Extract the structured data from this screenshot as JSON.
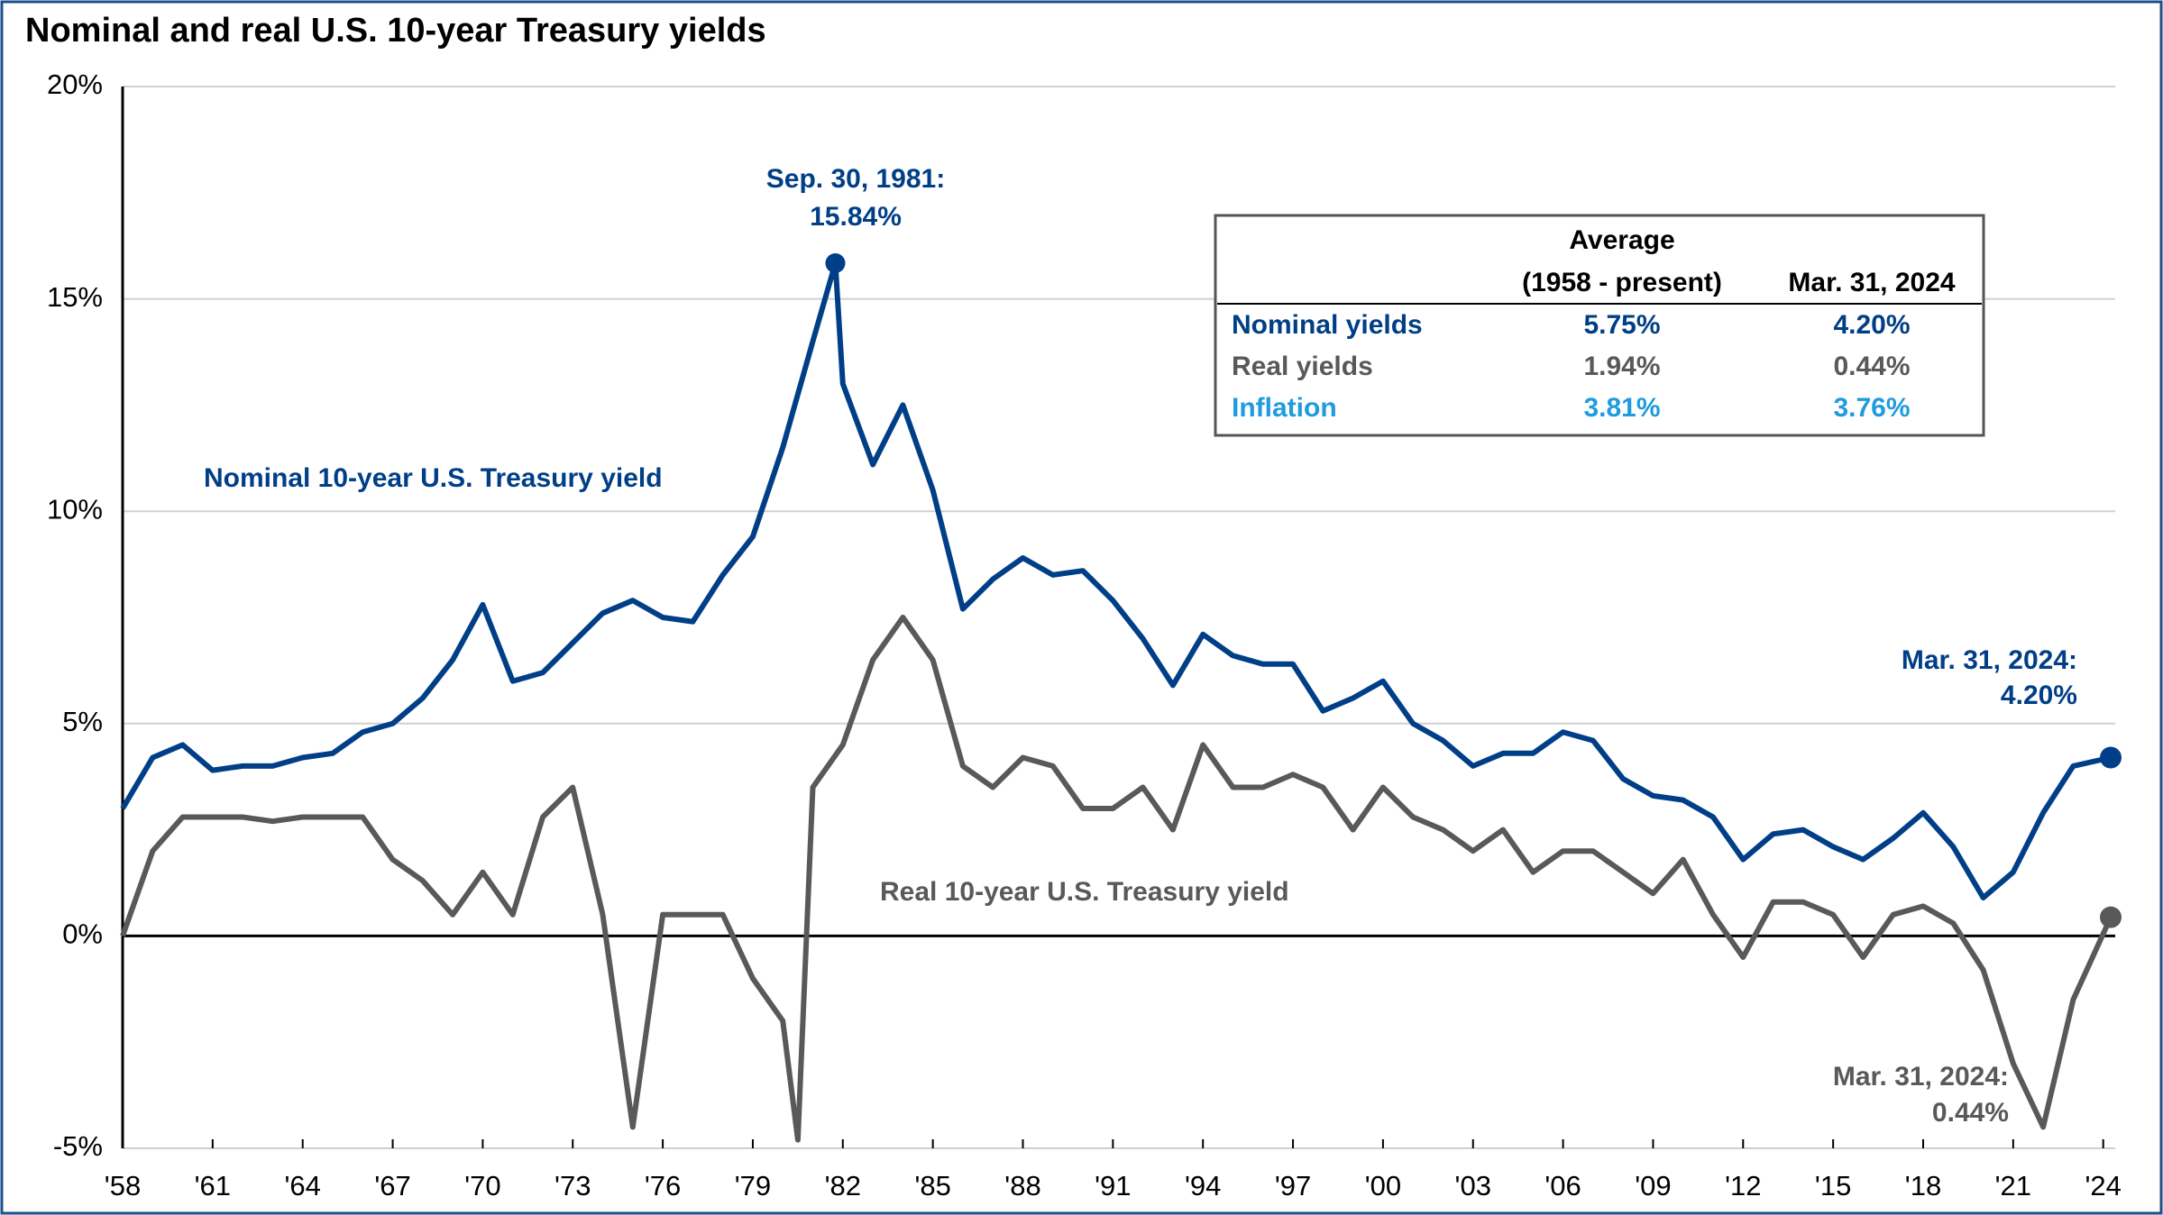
{
  "chart_data": {
    "type": "line",
    "title": "Nominal and real U.S. 10-year Treasury yields",
    "xlim": [
      1958,
      2024.4
    ],
    "xticks": [
      {
        "value": 1958,
        "label": "'58"
      },
      {
        "value": 1961,
        "label": "'61"
      },
      {
        "value": 1964,
        "label": "'64"
      },
      {
        "value": 1967,
        "label": "'67"
      },
      {
        "value": 1970,
        "label": "'70"
      },
      {
        "value": 1973,
        "label": "'73"
      },
      {
        "value": 1976,
        "label": "'76"
      },
      {
        "value": 1979,
        "label": "'79"
      },
      {
        "value": 1982,
        "label": "'82"
      },
      {
        "value": 1985,
        "label": "'85"
      },
      {
        "value": 1988,
        "label": "'88"
      },
      {
        "value": 1991,
        "label": "'91"
      },
      {
        "value": 1994,
        "label": "'94"
      },
      {
        "value": 1997,
        "label": "'97"
      },
      {
        "value": 2000,
        "label": "'00"
      },
      {
        "value": 2003,
        "label": "'03"
      },
      {
        "value": 2006,
        "label": "'06"
      },
      {
        "value": 2009,
        "label": "'09"
      },
      {
        "value": 2012,
        "label": "'12"
      },
      {
        "value": 2015,
        "label": "'15"
      },
      {
        "value": 2018,
        "label": "'18"
      },
      {
        "value": 2021,
        "label": "'21"
      },
      {
        "value": 2024,
        "label": "'24"
      }
    ],
    "ylim": [
      -5,
      20
    ],
    "yticks": [
      {
        "value": -5,
        "label": "-5%"
      },
      {
        "value": 0,
        "label": "0%"
      },
      {
        "value": 5,
        "label": "5%"
      },
      {
        "value": 10,
        "label": "10%"
      },
      {
        "value": 15,
        "label": "15%"
      },
      {
        "value": 20,
        "label": "20%"
      }
    ],
    "grid": true,
    "series": [
      {
        "name": "Nominal 10-year U.S. Treasury yield",
        "color": "#003f87",
        "x": [
          1958,
          1959,
          1960,
          1961,
          1962,
          1963,
          1964,
          1965,
          1966,
          1967,
          1968,
          1969,
          1970,
          1971,
          1972,
          1973,
          1974,
          1975,
          1976,
          1977,
          1978,
          1979,
          1980,
          1981,
          1981.75,
          1982,
          1983,
          1984,
          1985,
          1986,
          1987,
          1988,
          1989,
          1990,
          1991,
          1992,
          1993,
          1994,
          1995,
          1996,
          1997,
          1998,
          1999,
          2000,
          2001,
          2002,
          2003,
          2004,
          2005,
          2006,
          2007,
          2008,
          2009,
          2010,
          2011,
          2012,
          2013,
          2014,
          2015,
          2016,
          2017,
          2018,
          2019,
          2020,
          2021,
          2022,
          2023,
          2024.25
        ],
        "values": [
          3.0,
          4.2,
          4.5,
          3.9,
          4.0,
          4.0,
          4.2,
          4.3,
          4.8,
          5.0,
          5.6,
          6.5,
          7.8,
          6.0,
          6.2,
          6.9,
          7.6,
          7.9,
          7.5,
          7.4,
          8.5,
          9.4,
          11.5,
          14.0,
          15.84,
          13.0,
          11.1,
          12.5,
          10.5,
          7.7,
          8.4,
          8.9,
          8.5,
          8.6,
          7.9,
          7.0,
          5.9,
          7.1,
          6.6,
          6.4,
          6.4,
          5.3,
          5.6,
          6.0,
          5.0,
          4.6,
          4.0,
          4.3,
          4.3,
          4.8,
          4.6,
          3.7,
          3.3,
          3.2,
          2.8,
          1.8,
          2.4,
          2.5,
          2.1,
          1.8,
          2.3,
          2.9,
          2.1,
          0.9,
          1.5,
          2.9,
          4.0,
          4.2
        ]
      },
      {
        "name": "Real 10-year U.S. Treasury yield",
        "color": "#595959",
        "x": [
          1958,
          1959,
          1960,
          1961,
          1962,
          1963,
          1964,
          1965,
          1966,
          1967,
          1968,
          1969,
          1970,
          1971,
          1972,
          1973,
          1974,
          1975,
          1976,
          1977,
          1978,
          1979,
          1980,
          1980.5,
          1981,
          1982,
          1983,
          1984,
          1985,
          1986,
          1987,
          1988,
          1989,
          1990,
          1991,
          1992,
          1993,
          1994,
          1995,
          1996,
          1997,
          1998,
          1999,
          2000,
          2001,
          2002,
          2003,
          2004,
          2005,
          2006,
          2007,
          2008,
          2009,
          2010,
          2011,
          2012,
          2013,
          2014,
          2015,
          2016,
          2017,
          2018,
          2019,
          2020,
          2021,
          2022,
          2023,
          2024.25
        ],
        "values": [
          0.0,
          2.0,
          2.8,
          2.8,
          2.8,
          2.7,
          2.8,
          2.8,
          2.8,
          1.8,
          1.3,
          0.5,
          1.5,
          0.5,
          2.8,
          3.5,
          0.5,
          -4.5,
          0.5,
          0.5,
          0.5,
          -1.0,
          -2.0,
          -4.8,
          3.5,
          4.5,
          6.5,
          7.5,
          6.5,
          4.0,
          3.5,
          4.2,
          4.0,
          3.0,
          3.0,
          3.5,
          2.5,
          4.5,
          3.5,
          3.5,
          3.8,
          3.5,
          2.5,
          3.5,
          2.8,
          2.5,
          2.0,
          2.5,
          1.5,
          2.0,
          2.0,
          1.5,
          1.0,
          1.8,
          0.5,
          -0.5,
          0.8,
          0.8,
          0.5,
          -0.5,
          0.5,
          0.7,
          0.3,
          -0.8,
          -3.0,
          -4.5,
          -1.5,
          0.44
        ]
      }
    ],
    "annotations": [
      "Sep. 30, 1981:",
      "15.84%",
      "Nominal  10-year U.S. Treasury yield",
      "Real 10-year U.S. Treasury yield",
      "Mar. 31, 2024:",
      "4.20%",
      "Mar. 31, 2024:",
      "0.44%"
    ]
  },
  "table": {
    "header": [
      "Average",
      "(1958 - present)",
      "Mar. 31, 2024"
    ],
    "rows": [
      [
        "Nominal yields",
        "5.75%",
        "4.20%"
      ],
      [
        "Real yields",
        "1.94%",
        "0.44%"
      ],
      [
        "Inflation",
        "3.81%",
        "3.76%"
      ]
    ]
  }
}
